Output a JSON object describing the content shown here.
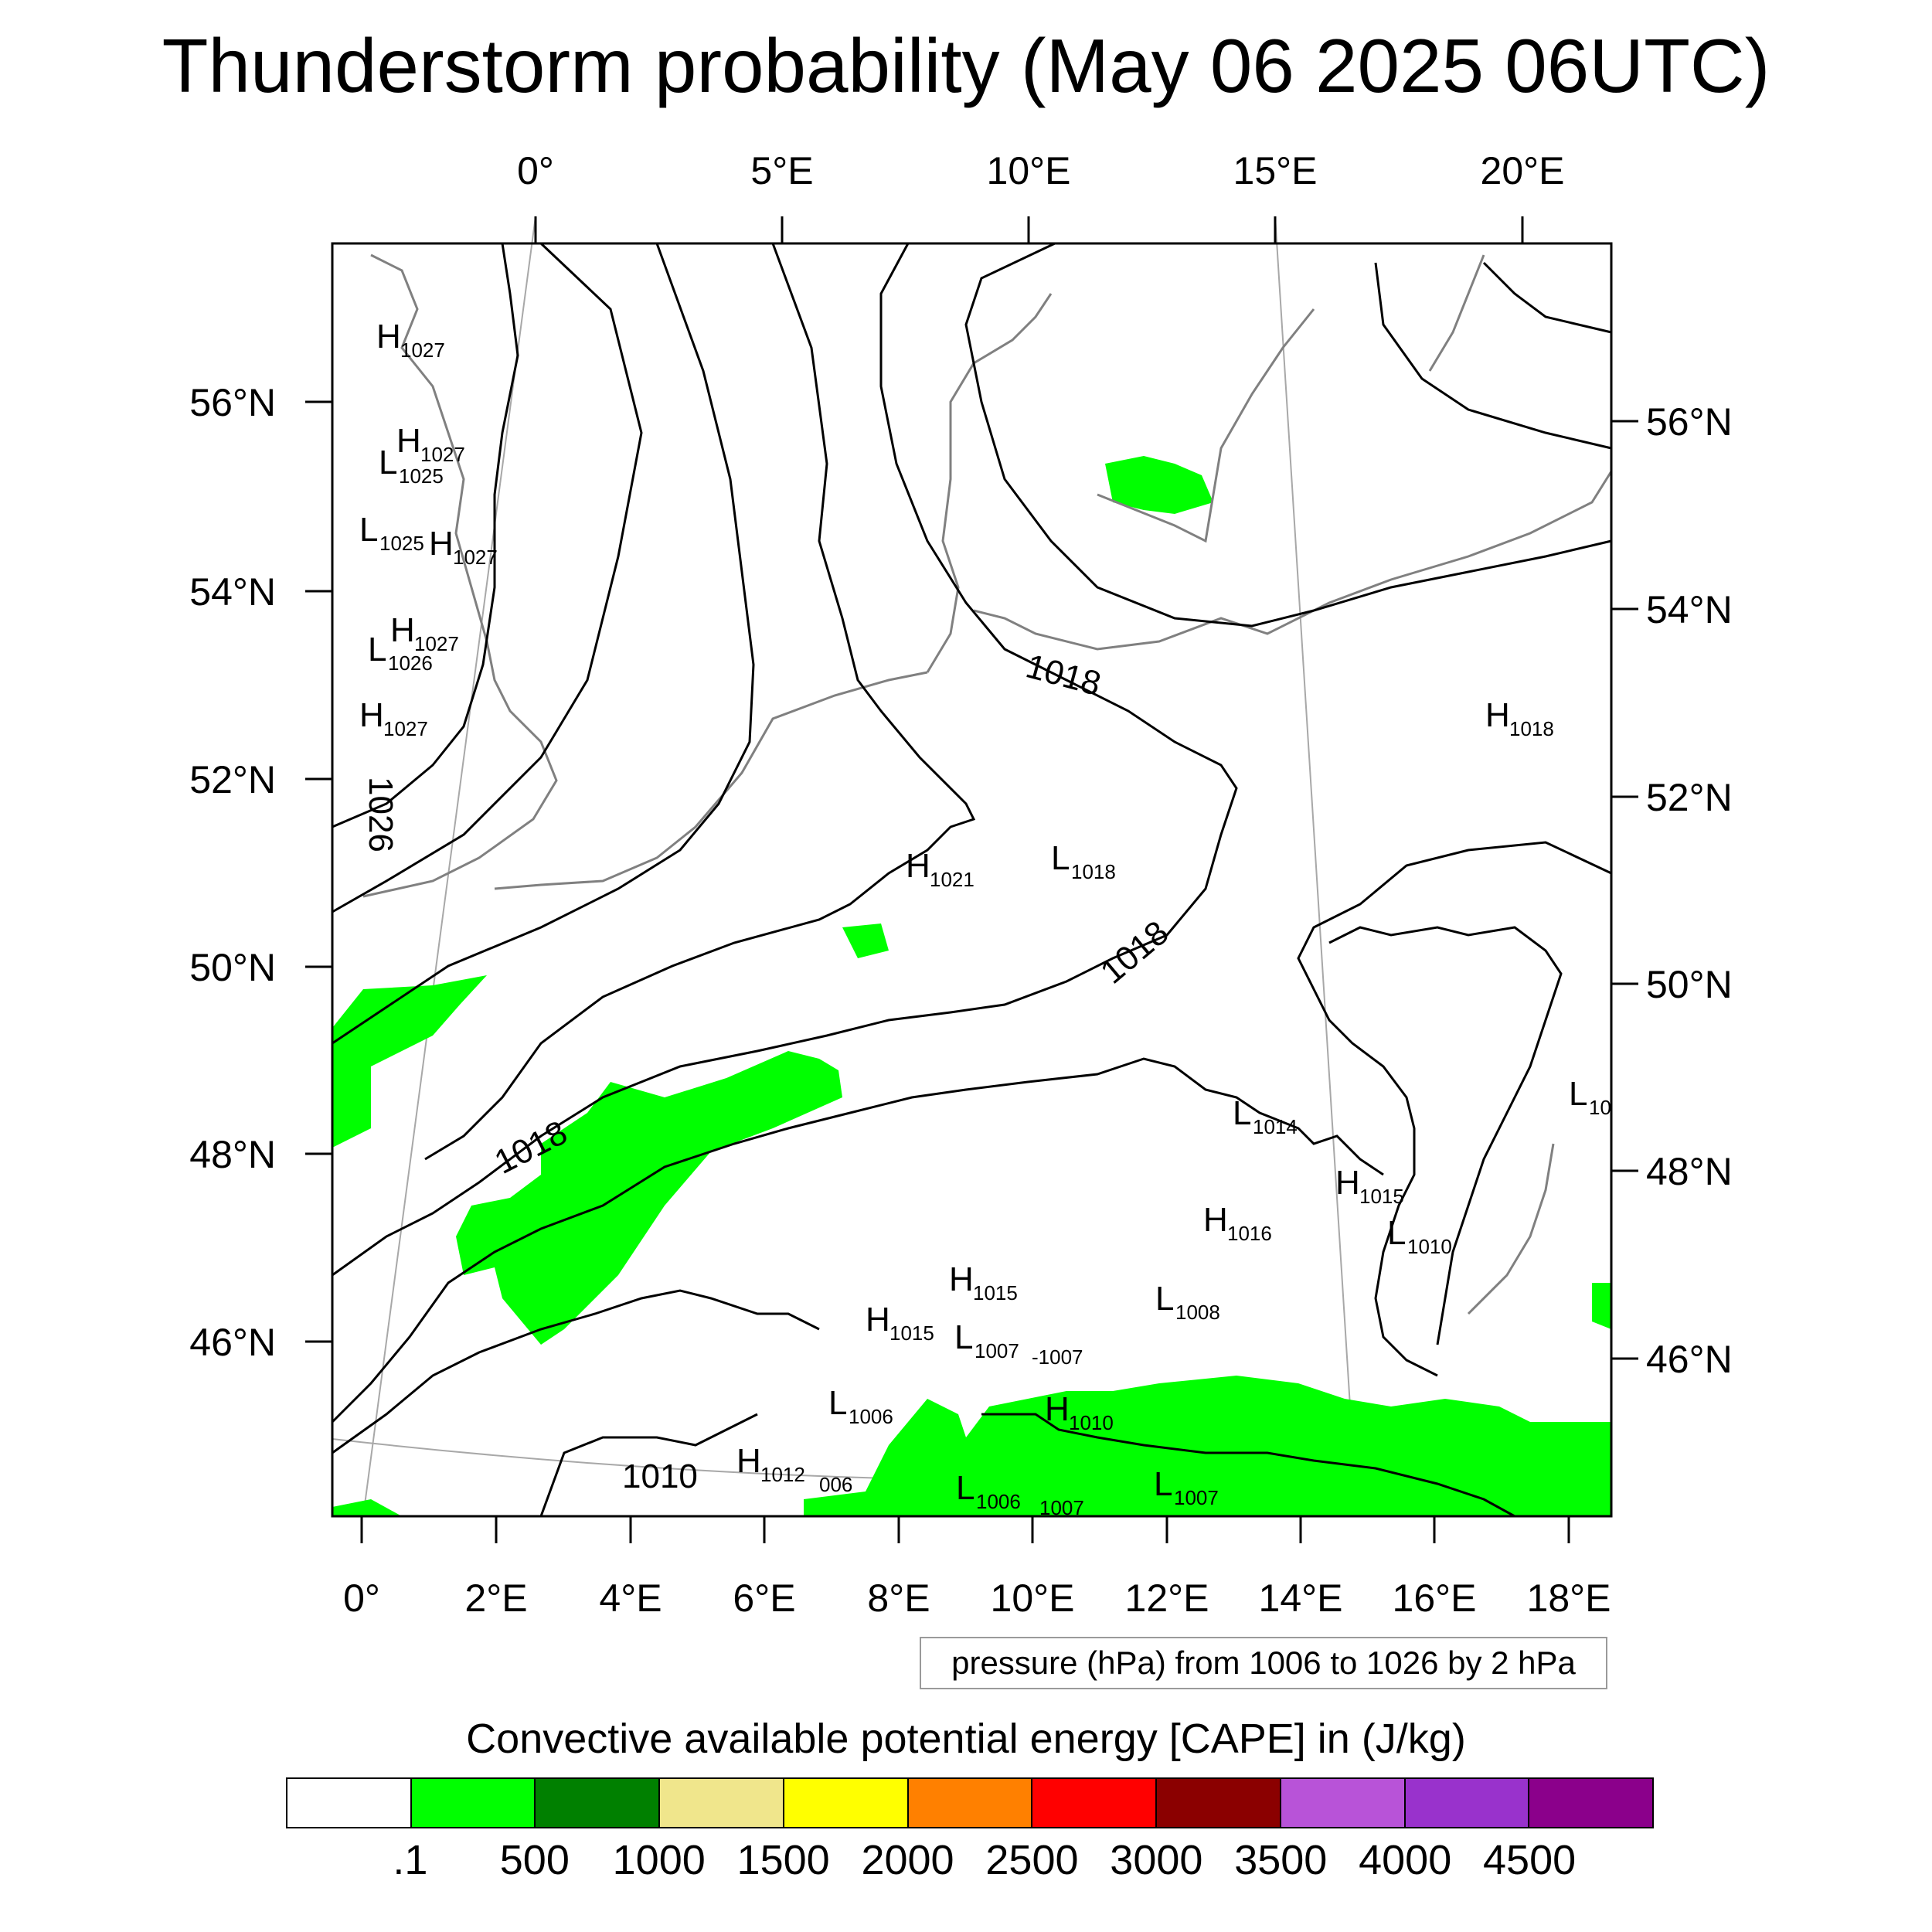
{
  "title": "Thunderstorm probability (May 06 2025 06UTC)",
  "map": {
    "top_lon_labels": [
      "0°",
      "5°E",
      "10°E",
      "15°E",
      "20°E"
    ],
    "bottom_lon_labels": [
      "0°",
      "2°E",
      "4°E",
      "6°E",
      "8°E",
      "10°E",
      "12°E",
      "14°E",
      "16°E",
      "18°E"
    ],
    "left_lat_labels": [
      "56°N",
      "54°N",
      "52°N",
      "50°N",
      "48°N",
      "46°N"
    ],
    "right_lat_labels": [
      "56°N",
      "54°N",
      "52°N",
      "50°N",
      "48°N",
      "46°N"
    ],
    "contour_labels": [
      "1018",
      "1018",
      "1018",
      "1026",
      "1010"
    ],
    "pressure_centers": [
      {
        "kind": "H",
        "value": "1027"
      },
      {
        "kind": "H",
        "value": "1027"
      },
      {
        "kind": "L",
        "value": "1025"
      },
      {
        "kind": "L",
        "value": "1025"
      },
      {
        "kind": "H",
        "value": "1027"
      },
      {
        "kind": "H",
        "value": "1027"
      },
      {
        "kind": "L",
        "value": "1026"
      },
      {
        "kind": "H",
        "value": "1027"
      },
      {
        "kind": "H",
        "value": "1021"
      },
      {
        "kind": "L",
        "value": "1018"
      },
      {
        "kind": "H",
        "value": "1018"
      },
      {
        "kind": "L",
        "value": "1014"
      },
      {
        "kind": "H",
        "value": "1015"
      },
      {
        "kind": "H",
        "value": "1016"
      },
      {
        "kind": "L",
        "value": "1010"
      },
      {
        "kind": "L",
        "value": "10"
      },
      {
        "kind": "H",
        "value": "1015"
      },
      {
        "kind": "H",
        "value": "1015"
      },
      {
        "kind": "L",
        "value": "1007"
      },
      {
        "kind": "L",
        "value": "1008"
      },
      {
        "kind": "L",
        "value": "1006"
      },
      {
        "kind": "H",
        "value": "1010"
      },
      {
        "kind": "H",
        "value": "1012"
      },
      {
        "kind": "L",
        "value": "1006"
      },
      {
        "kind": "L",
        "value": "1007"
      }
    ],
    "minor_labels": [
      "-1007",
      "006",
      "1007"
    ],
    "colors": {
      "cape_low": "#00ff00",
      "contour": "#000000",
      "coast": "#808080",
      "grid": "#a0a0a0"
    }
  },
  "legend_note": "pressure (hPa) from 1006 to 1026 by 2 hPa",
  "cape_title": "Convective available potential energy [CAPE] in (J/kg)",
  "colorbar": {
    "colors": [
      "#ffffff",
      "#00ff00",
      "#008000",
      "#f0e68c",
      "#ffff00",
      "#ff8000",
      "#ff0000",
      "#8b0000",
      "#b853d8",
      "#9932cc",
      "#8b008b"
    ],
    "labels": [
      ".1",
      "500",
      "1000",
      "1500",
      "2000",
      "2500",
      "3000",
      "3500",
      "4000",
      "4500"
    ]
  }
}
